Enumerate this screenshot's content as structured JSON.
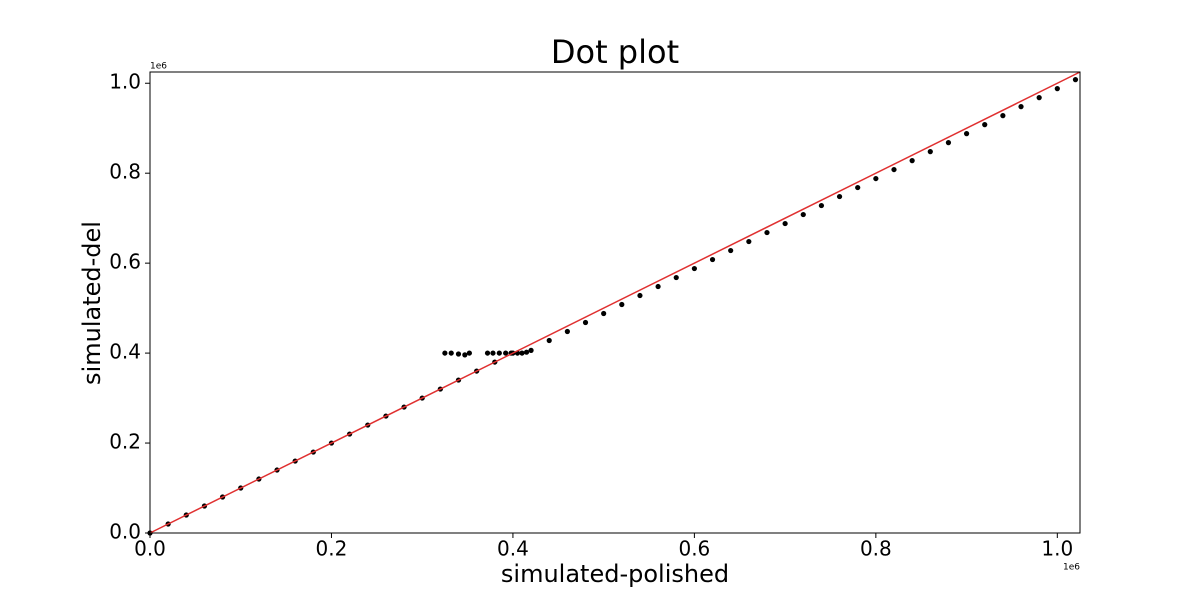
{
  "chart_data": {
    "type": "scatter",
    "title": "Dot plot",
    "x_label": "simulated-polished",
    "y_label": "simulated-del",
    "x_offset_label": "1e6",
    "y_offset_label": "1e6",
    "xlim": [
      0,
      1025000
    ],
    "ylim": [
      0,
      1025000
    ],
    "xticks": [
      {
        "value": 0,
        "label": "0.0"
      },
      {
        "value": 200000,
        "label": "0.2"
      },
      {
        "value": 400000,
        "label": "0.4"
      },
      {
        "value": 600000,
        "label": "0.6"
      },
      {
        "value": 800000,
        "label": "0.8"
      },
      {
        "value": 1000000,
        "label": "1.0"
      }
    ],
    "yticks": [
      {
        "value": 0,
        "label": "0.0"
      },
      {
        "value": 200000,
        "label": "0.2"
      },
      {
        "value": 400000,
        "label": "0.4"
      },
      {
        "value": 600000,
        "label": "0.6"
      },
      {
        "value": 800000,
        "label": "0.8"
      },
      {
        "value": 1000000,
        "label": "1.0"
      }
    ],
    "reference_line": {
      "color": "#e03030",
      "x": [
        0,
        1025000
      ],
      "y": [
        0,
        1025000
      ]
    },
    "color": "#000000",
    "x": [
      0,
      20000,
      40000,
      60000,
      80000,
      100000,
      120000,
      140000,
      160000,
      180000,
      200000,
      220000,
      240000,
      260000,
      280000,
      300000,
      320000,
      340000,
      360000,
      380000,
      400000,
      325000,
      332000,
      340000,
      347000,
      352000,
      372000,
      378000,
      385000,
      392000,
      398000,
      405000,
      410000,
      415000,
      420000,
      440000,
      460000,
      480000,
      500000,
      520000,
      540000,
      560000,
      580000,
      600000,
      620000,
      640000,
      660000,
      680000,
      700000,
      720000,
      740000,
      760000,
      780000,
      800000,
      820000,
      840000,
      860000,
      880000,
      900000,
      920000,
      940000,
      960000,
      980000,
      1000000,
      1020000
    ],
    "y": [
      0,
      20000,
      40000,
      60000,
      80000,
      100000,
      120000,
      140000,
      160000,
      180000,
      200000,
      220000,
      240000,
      260000,
      280000,
      300000,
      320000,
      340000,
      360000,
      380000,
      400000,
      400000,
      400000,
      398000,
      396000,
      400000,
      400000,
      400000,
      400000,
      400000,
      400000,
      400000,
      400000,
      402000,
      406000,
      428000,
      448000,
      468000,
      488000,
      508000,
      528000,
      548000,
      568000,
      588000,
      608000,
      628000,
      648000,
      668000,
      688000,
      708000,
      728000,
      748000,
      768000,
      788000,
      808000,
      828000,
      848000,
      868000,
      888000,
      908000,
      928000,
      948000,
      968000,
      988000,
      1008000
    ]
  }
}
